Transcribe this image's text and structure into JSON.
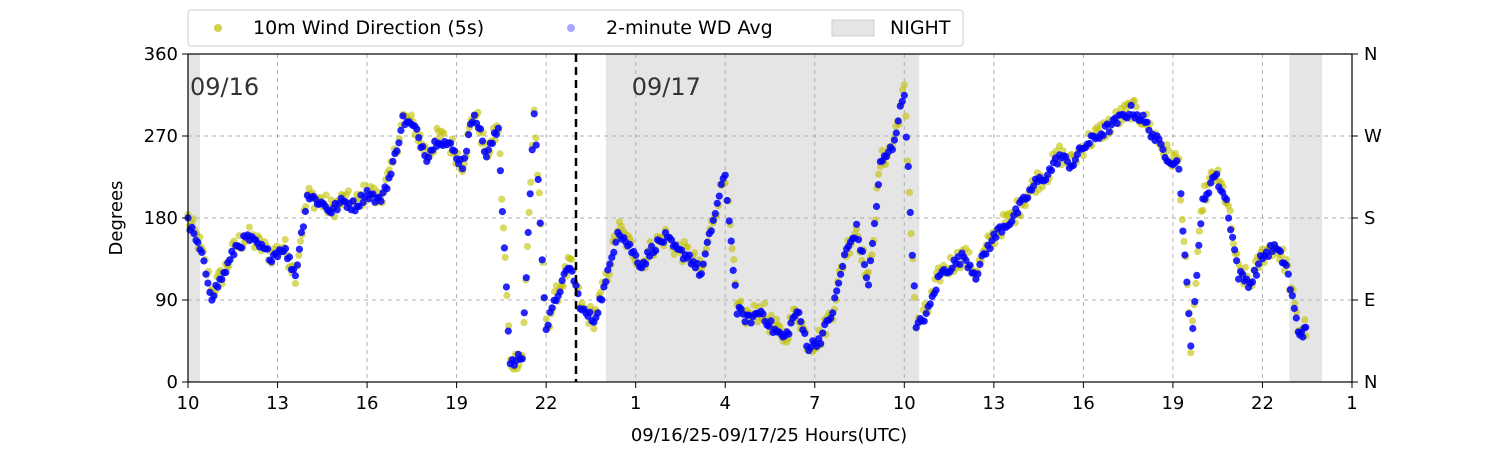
{
  "chart_data": {
    "type": "scatter",
    "xlabel": "09/16/25-09/17/25  Hours(UTC)",
    "ylabel": "Degrees",
    "xlim": [
      10,
      49
    ],
    "ylim": [
      0,
      360
    ],
    "x_ticks": [
      {
        "x": 10,
        "label": "10"
      },
      {
        "x": 13,
        "label": "13"
      },
      {
        "x": 16,
        "label": "16"
      },
      {
        "x": 19,
        "label": "19"
      },
      {
        "x": 22,
        "label": "22"
      },
      {
        "x": 25,
        "label": "1"
      },
      {
        "x": 28,
        "label": "4"
      },
      {
        "x": 31,
        "label": "7"
      },
      {
        "x": 34,
        "label": "10"
      },
      {
        "x": 37,
        "label": "13"
      },
      {
        "x": 40,
        "label": "16"
      },
      {
        "x": 43,
        "label": "19"
      },
      {
        "x": 46,
        "label": "22"
      },
      {
        "x": 49,
        "label": "1"
      }
    ],
    "y_ticks": [
      {
        "y": 0,
        "label": "0"
      },
      {
        "y": 90,
        "label": "90"
      },
      {
        "y": 180,
        "label": "180"
      },
      {
        "y": 270,
        "label": "270"
      },
      {
        "y": 360,
        "label": "360"
      }
    ],
    "right_ticks": [
      {
        "y": 0,
        "label": "N"
      },
      {
        "y": 90,
        "label": "E"
      },
      {
        "y": 180,
        "label": "S"
      },
      {
        "y": 270,
        "label": "W"
      },
      {
        "y": 360,
        "label": "N"
      }
    ],
    "grid": true,
    "legend_position": "top",
    "legend": [
      {
        "label": "10m Wind Direction (5s)",
        "kind": "dot",
        "color": "#bfbf00"
      },
      {
        "label": "2-minute WD Avg",
        "kind": "dot",
        "color": "#0000ff"
      },
      {
        "label": "NIGHT",
        "kind": "box",
        "color": "#e5e5e5"
      }
    ],
    "night_spans": [
      [
        10.0,
        10.4
      ],
      [
        24.0,
        34.5
      ],
      [
        46.9,
        48.0
      ]
    ],
    "day_divider_x": 23,
    "day_labels": [
      {
        "x": 10.0,
        "y": 328,
        "text": "09/16"
      },
      {
        "x": 24.8,
        "y": 328,
        "text": "09/17"
      }
    ],
    "series": [
      {
        "name": "10m Wind Direction (5s)",
        "color": "#bfbf00",
        "spread": 24,
        "x": [
          10.0,
          10.4,
          10.8,
          11.2,
          11.6,
          12.0,
          12.4,
          12.8,
          13.2,
          13.6,
          14.0,
          14.4,
          14.8,
          15.2,
          15.6,
          16.0,
          16.4,
          16.8,
          17.2,
          17.6,
          18.0,
          18.4,
          18.8,
          19.2,
          19.6,
          20.0,
          20.4,
          20.8,
          21.2,
          21.6,
          22.0,
          22.4,
          22.8,
          23.2,
          23.6,
          24.0,
          24.4,
          24.8,
          25.2,
          25.6,
          26.0,
          26.4,
          26.8,
          27.2,
          27.6,
          28.0,
          28.4,
          28.8,
          29.2,
          29.6,
          30.0,
          30.4,
          30.8,
          31.2,
          31.6,
          32.0,
          32.4,
          32.8,
          33.2,
          33.6,
          34.0,
          34.4,
          34.8,
          35.2,
          35.6,
          36.0,
          36.4,
          36.8,
          37.2,
          37.6,
          38.0,
          38.4,
          38.8,
          39.2,
          39.6,
          40.0,
          40.4,
          40.8,
          41.2,
          41.6,
          42.0,
          42.4,
          42.8,
          43.2,
          43.6,
          44.0,
          44.4,
          44.8,
          45.2,
          45.6,
          46.0,
          46.4,
          46.8,
          47.2
        ],
        "y": [
          180,
          150,
          100,
          120,
          150,
          160,
          150,
          140,
          150,
          120,
          205,
          200,
          190,
          200,
          195,
          210,
          200,
          230,
          290,
          280,
          250,
          270,
          260,
          240,
          300,
          250,
          280,
          20,
          30,
          300,
          60,
          100,
          130,
          80,
          70,
          110,
          170,
          150,
          130,
          150,
          160,
          145,
          140,
          120,
          180,
          230,
          80,
          70,
          80,
          60,
          50,
          80,
          40,
          50,
          80,
          140,
          170,
          110,
          240,
          260,
          320,
          60,
          80,
          120,
          130,
          140,
          120,
          150,
          170,
          180,
          200,
          220,
          230,
          250,
          240,
          260,
          270,
          280,
          290,
          300,
          290,
          270,
          250,
          240,
          40,
          200,
          230,
          200,
          120,
          110,
          140,
          150,
          130,
          60
        ]
      },
      {
        "name": "2-minute WD Avg",
        "color": "#0000ff",
        "spread": 12,
        "x": [
          10.0,
          10.4,
          10.8,
          11.2,
          11.6,
          12.0,
          12.4,
          12.8,
          13.2,
          13.6,
          14.0,
          14.4,
          14.8,
          15.2,
          15.6,
          16.0,
          16.4,
          16.8,
          17.2,
          17.6,
          18.0,
          18.4,
          18.8,
          19.2,
          19.6,
          20.0,
          20.4,
          20.8,
          21.2,
          21.6,
          22.0,
          22.4,
          22.8,
          23.2,
          23.6,
          24.0,
          24.4,
          24.8,
          25.2,
          25.6,
          26.0,
          26.4,
          26.8,
          27.2,
          27.6,
          28.0,
          28.4,
          28.8,
          29.2,
          29.6,
          30.0,
          30.4,
          30.8,
          31.2,
          31.6,
          32.0,
          32.4,
          32.8,
          33.2,
          33.6,
          34.0,
          34.4,
          34.8,
          35.2,
          35.6,
          36.0,
          36.4,
          36.8,
          37.2,
          37.6,
          38.0,
          38.4,
          38.8,
          39.2,
          39.6,
          40.0,
          40.4,
          40.8,
          41.2,
          41.6,
          42.0,
          42.4,
          42.8,
          43.2,
          43.6,
          44.0,
          44.4,
          44.8,
          45.2,
          45.6,
          46.0,
          46.4,
          46.8,
          47.2
        ],
        "y": [
          175,
          145,
          95,
          118,
          148,
          158,
          148,
          138,
          148,
          118,
          205,
          198,
          188,
          198,
          193,
          208,
          198,
          228,
          288,
          278,
          248,
          268,
          258,
          238,
          298,
          248,
          278,
          18,
          28,
          298,
          58,
          98,
          128,
          78,
          68,
          108,
          168,
          148,
          128,
          148,
          158,
          143,
          138,
          118,
          178,
          228,
          78,
          68,
          78,
          58,
          48,
          78,
          38,
          48,
          78,
          138,
          168,
          108,
          238,
          258,
          318,
          58,
          78,
          118,
          128,
          138,
          118,
          148,
          168,
          178,
          198,
          218,
          228,
          248,
          238,
          258,
          268,
          278,
          288,
          298,
          288,
          268,
          248,
          238,
          38,
          198,
          228,
          198,
          118,
          108,
          138,
          148,
          128,
          55
        ]
      }
    ]
  }
}
